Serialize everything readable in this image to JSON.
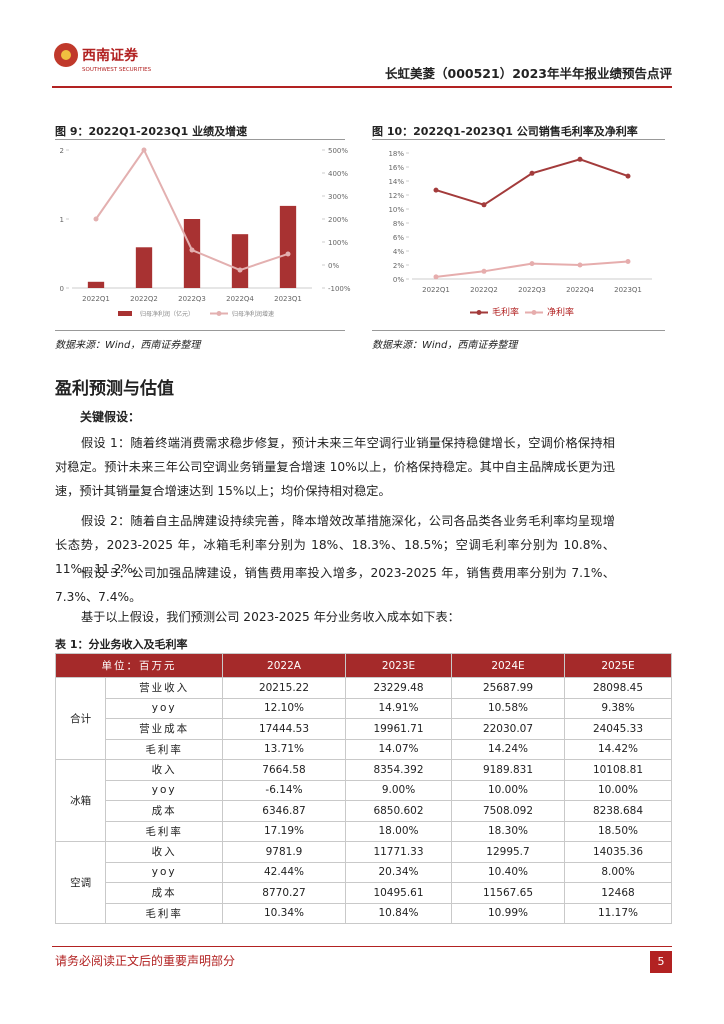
{
  "header": {
    "logo_name": "西南证券",
    "logo_sub": "SOUTHWEST SECURITIES",
    "title": "长虹美菱（000521）2023年半年报业绩预告点评"
  },
  "charts": [
    {
      "caption": "图 9：2022Q1-2023Q1 业绩及增速",
      "source": "数据来源：Wind，西南证券整理",
      "chart_data": {
        "type": "bar",
        "categories": [
          "2022Q1",
          "2022Q2",
          "2022Q3",
          "2022Q4",
          "2023Q1"
        ],
        "series": [
          {
            "name": "归母净利润（亿元）",
            "type": "bar",
            "color": "#a83232",
            "values": [
              0.09,
              0.59,
              1.0,
              0.78,
              1.19
            ]
          },
          {
            "name": "归母净利润增速",
            "type": "line",
            "axis": "y2",
            "color": "#e3b0b0",
            "values": [
              200,
              500,
              65,
              -22,
              48
            ]
          }
        ],
        "ylim": [
          0,
          2
        ],
        "yticks": [
          0,
          1,
          2
        ],
        "y2lim": [
          -100,
          500
        ],
        "y2ticks": [
          {
            "value": -100,
            "label": "-100%"
          },
          {
            "value": 0,
            "label": "0%"
          },
          {
            "value": 100,
            "label": "100%"
          },
          {
            "value": 200,
            "label": "200%"
          },
          {
            "value": 300,
            "label": "300%"
          },
          {
            "value": 400,
            "label": "400%"
          },
          {
            "value": 500,
            "label": "500%"
          }
        ]
      }
    },
    {
      "caption": "图 10：2022Q1-2023Q1 公司销售毛利率及净利率",
      "source": "数据来源：Wind，西南证券整理",
      "chart_data": {
        "type": "line",
        "categories": [
          "2022Q1",
          "2022Q2",
          "2022Q3",
          "2022Q4",
          "2023Q1"
        ],
        "series": [
          {
            "name": "毛利率",
            "type": "line",
            "color": "#a33b3b",
            "values": [
              12.7,
              10.6,
              15.1,
              17.1,
              14.7
            ]
          },
          {
            "name": "净利率",
            "type": "line",
            "color": "#e6adad",
            "values": [
              0.3,
              1.1,
              2.2,
              2.0,
              2.5
            ]
          }
        ],
        "ylim": [
          0,
          18
        ],
        "yticks": [
          {
            "value": 0,
            "label": "0%"
          },
          {
            "value": 2,
            "label": "2%"
          },
          {
            "value": 4,
            "label": "4%"
          },
          {
            "value": 6,
            "label": "6%"
          },
          {
            "value": 8,
            "label": "8%"
          },
          {
            "value": 10,
            "label": "10%"
          },
          {
            "value": 12,
            "label": "12%"
          },
          {
            "value": 14,
            "label": "14%"
          },
          {
            "value": 16,
            "label": "16%"
          },
          {
            "value": 18,
            "label": "18%"
          }
        ]
      }
    }
  ],
  "section": {
    "heading": "盈利预测与估值",
    "subheading": "关键假设：",
    "paragraphs": [
      "假设 1：随着终端消费需求稳步修复，预计未来三年空调行业销量保持稳健增长，空调价格保持相对稳定。预计未来三年公司空调业务销量复合增速 10%以上，价格保持稳定。其中自主品牌成长更为迅速，预计其销量复合增速达到 15%以上；均价保持相对稳定。",
      "假设 2：随着自主品牌建设持续完善，降本增效改革措施深化，公司各品类各业务毛利率均呈现增长态势，2023-2025 年，冰箱毛利率分别为 18%、18.3%、18.5%；空调毛利率分别为 10.8%、11%、11.2%。",
      "假设 3：公司加强品牌建设，销售费用率投入增多，2023-2025 年，销售费用率分别为 7.1%、7.3%、7.4%。",
      "基于以上假设，我们预测公司 2023-2025 年分业务收入成本如下表："
    ]
  },
  "table": {
    "caption": "表 1：分业务收入及毛利率",
    "header": [
      "单位：百万元",
      "2022A",
      "2023E",
      "2024E",
      "2025E"
    ],
    "groups": [
      {
        "name": "合计",
        "rows": [
          [
            "营业收入",
            "20215.22",
            "23229.48",
            "25687.99",
            "28098.45"
          ],
          [
            "yoy",
            "12.10%",
            "14.91%",
            "10.58%",
            "9.38%"
          ],
          [
            "营业成本",
            "17444.53",
            "19961.71",
            "22030.07",
            "24045.33"
          ],
          [
            "毛利率",
            "13.71%",
            "14.07%",
            "14.24%",
            "14.42%"
          ]
        ]
      },
      {
        "name": "冰箱",
        "rows": [
          [
            "收入",
            "7664.58",
            "8354.392",
            "9189.831",
            "10108.81"
          ],
          [
            "yoy",
            "-6.14%",
            "9.00%",
            "10.00%",
            "10.00%"
          ],
          [
            "成本",
            "6346.87",
            "6850.602",
            "7508.092",
            "8238.684"
          ],
          [
            "毛利率",
            "17.19%",
            "18.00%",
            "18.30%",
            "18.50%"
          ]
        ]
      },
      {
        "name": "空调",
        "rows": [
          [
            "收入",
            "9781.9",
            "11771.33",
            "12995.7",
            "14035.36"
          ],
          [
            "yoy",
            "42.44%",
            "20.34%",
            "10.40%",
            "8.00%"
          ],
          [
            "成本",
            "8770.27",
            "10495.61",
            "11567.65",
            "12468"
          ],
          [
            "毛利率",
            "10.34%",
            "10.84%",
            "10.99%",
            "11.17%"
          ]
        ]
      }
    ]
  },
  "footer": {
    "notice": "请务必阅读正文后的重要声明部分",
    "page": "5"
  }
}
